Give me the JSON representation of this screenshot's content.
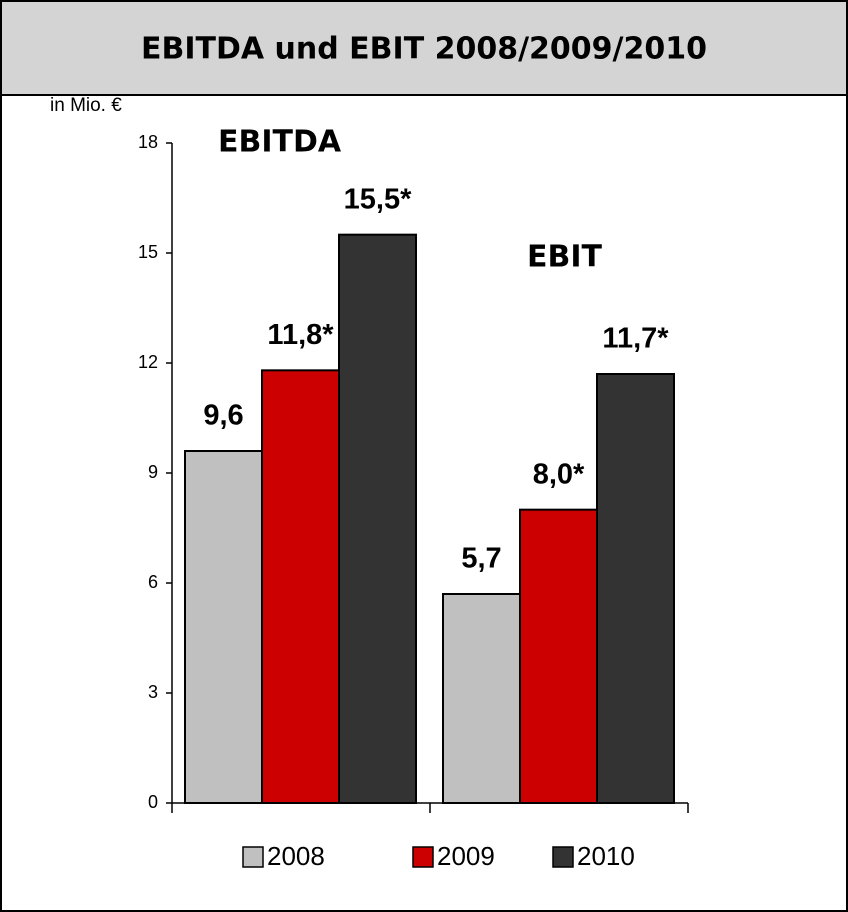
{
  "chart_data": {
    "type": "bar",
    "title": "EBITDA und EBIT 2008/2009/2010",
    "y_label": "in Mio. €",
    "categories": [
      "EBITDA",
      "EBIT"
    ],
    "series": [
      {
        "name": "2008",
        "color": "#c0c0c0",
        "values": [
          9.6,
          5.7
        ],
        "value_labels": [
          "9,6",
          "5,7"
        ]
      },
      {
        "name": "2009",
        "color": "#cc0000",
        "values": [
          11.8,
          8.0
        ],
        "value_labels": [
          "11,8*",
          "8,0*"
        ]
      },
      {
        "name": "2010",
        "color": "#333333",
        "values": [
          15.5,
          11.7
        ],
        "value_labels": [
          "15,5*",
          "11,7*"
        ]
      }
    ],
    "ylim": [
      0,
      18
    ],
    "yticks": [
      0,
      3,
      6,
      9,
      12,
      15,
      18
    ],
    "legend": "bottom"
  }
}
